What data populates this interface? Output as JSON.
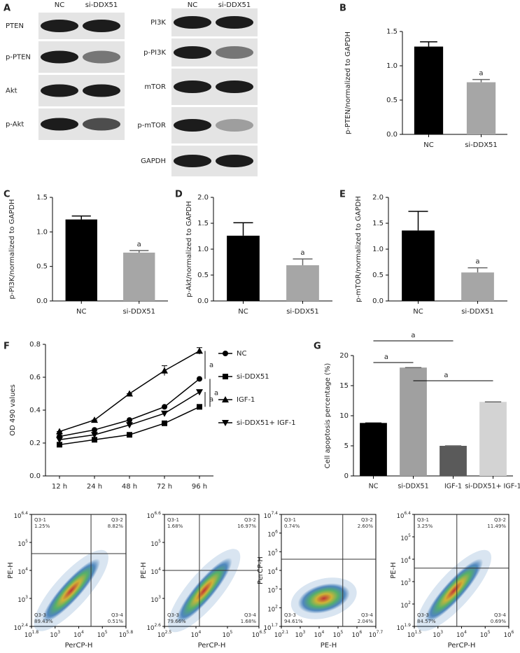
{
  "blots": {
    "panel": "A",
    "left": {
      "columns": [
        "NC",
        "si-DDX51"
      ],
      "rows": [
        "PTEN",
        "p-PTEN",
        "Akt",
        "p-Akt"
      ]
    },
    "right": {
      "columns": [
        "NC",
        "si-DDX51"
      ],
      "rows": [
        "PI3K",
        "p-PI3K",
        "mTOR",
        "p-mTOR",
        "GAPDH"
      ]
    }
  },
  "chart_data": [
    {
      "type": "bar",
      "panel": "B",
      "y_label": "p-PTEN/normalized to GAPDH",
      "categories": [
        "NC",
        "si-DDX51"
      ],
      "values": [
        1.28,
        0.76
      ],
      "errors": [
        0.07,
        0.04
      ],
      "colors": [
        "#000000",
        "#a6a6a6"
      ],
      "value_annotations": [
        null,
        "a"
      ],
      "ylim": [
        0,
        1.5
      ],
      "yticks": [
        {
          "value": 0,
          "label": "0.0"
        },
        0.5,
        {
          "value": 1,
          "label": "1.0"
        },
        1.5
      ]
    },
    {
      "type": "bar",
      "panel": "C",
      "y_label": "p-PI3K/normalized to GAPDH",
      "categories": [
        "NC",
        "si-DDX51"
      ],
      "values": [
        1.18,
        0.7
      ],
      "errors": [
        0.05,
        0.03
      ],
      "colors": [
        "#000000",
        "#a6a6a6"
      ],
      "value_annotations": [
        null,
        "a"
      ],
      "ylim": [
        0,
        1.5
      ],
      "yticks": [
        {
          "value": 0,
          "label": "0.0"
        },
        0.5,
        {
          "value": 1,
          "label": "1.0"
        },
        1.5
      ]
    },
    {
      "type": "bar",
      "panel": "D",
      "y_label": "p-Akt/normalized to GAPDH",
      "categories": [
        "NC",
        "si-DDX51"
      ],
      "values": [
        1.26,
        0.69
      ],
      "errors": [
        0.25,
        0.12
      ],
      "colors": [
        "#000000",
        "#a6a6a6"
      ],
      "value_annotations": [
        null,
        "a"
      ],
      "ylim": [
        0,
        2
      ],
      "yticks": [
        {
          "value": 0,
          "label": "0.0"
        },
        0.5,
        {
          "value": 1,
          "label": "1.0"
        },
        1.5,
        {
          "value": 2,
          "label": "2.0"
        }
      ]
    },
    {
      "type": "bar",
      "panel": "E",
      "y_label": "p-mTOR/normalized to GAPDH",
      "categories": [
        "NC",
        "si-DDX51"
      ],
      "values": [
        1.36,
        0.55
      ],
      "errors": [
        0.37,
        0.09
      ],
      "colors": [
        "#000000",
        "#a6a6a6"
      ],
      "value_annotations": [
        null,
        "a"
      ],
      "ylim": [
        0,
        2
      ],
      "yticks": [
        {
          "value": 0,
          "label": "0.0"
        },
        0.5,
        {
          "value": 1,
          "label": "1.0"
        },
        1.5,
        {
          "value": 2,
          "label": "2.0"
        }
      ]
    },
    {
      "type": "line",
      "panel": "F",
      "y_label": "OD 490 values",
      "categories": [
        "12 h",
        "24 h",
        "48 h",
        "72 h",
        "96 h"
      ],
      "series": [
        {
          "name": "NC",
          "color": "#000000",
          "marker": "circle",
          "values": [
            0.24,
            0.28,
            0.34,
            0.42,
            0.59
          ]
        },
        {
          "name": "si-DDX51",
          "color": "#000000",
          "marker": "square",
          "values": [
            0.19,
            0.22,
            0.25,
            0.32,
            0.42
          ]
        },
        {
          "name": "IGF-1",
          "color": "#000000",
          "marker": "triangle",
          "values": [
            0.27,
            0.34,
            0.5,
            0.64,
            0.76
          ],
          "errors": [
            0,
            0,
            0,
            0.03,
            0.02
          ]
        },
        {
          "name": "si-DDX51+ IGF-1",
          "color": "#000000",
          "marker": "triangle-down",
          "values": [
            0.22,
            0.25,
            0.31,
            0.38,
            0.51
          ]
        }
      ],
      "brackets": [
        {
          "from": "IGF-1",
          "to": "NC",
          "text": "a"
        },
        {
          "from": "NC",
          "to": "si-DDX51",
          "text": "a"
        },
        {
          "from": "si-DDX51+ IGF-1",
          "to": "si-DDX51",
          "text": "a"
        }
      ],
      "ylim": [
        0,
        0.8
      ],
      "yticks": [
        {
          "value": 0,
          "label": "0.0"
        },
        0.2,
        0.4,
        0.6,
        0.8
      ]
    },
    {
      "type": "bar",
      "panel": "G",
      "y_label": "Cell apoptosis percentage (%)",
      "categories": [
        "NC",
        "si-DDX51",
        "IGF-1",
        "si-DDX51+ IGF-1"
      ],
      "values": [
        8.8,
        18,
        5,
        12.3
      ],
      "errors": [
        0,
        0,
        0,
        0
      ],
      "colors": [
        "#000000",
        "#a0a0a0",
        "#5a5a5a",
        "#d3d3d3"
      ],
      "brackets": [
        {
          "from": "NC",
          "to": "IGF-1",
          "text": "a"
        },
        {
          "from": "NC",
          "to": "si-DDX51",
          "text": "a"
        },
        {
          "from": "si-DDX51",
          "to": "si-DDX51+ IGF-1",
          "text": "a"
        }
      ],
      "ylim": [
        0,
        20
      ],
      "yticks": [
        0,
        5,
        10,
        15,
        20
      ]
    }
  ],
  "flow": [
    {
      "x_label": "PerCP-H",
      "y_label": "PE-H",
      "xticks": [
        {
          "base": "10",
          "exp": "1.8"
        },
        {
          "base": "10",
          "exp": "3"
        },
        {
          "base": "10",
          "exp": "4"
        },
        {
          "base": "10",
          "exp": "5"
        },
        {
          "base": "10",
          "exp": "5.8"
        }
      ],
      "yticks": [
        {
          "base": "10",
          "exp": "6.4"
        },
        {
          "base": "10",
          "exp": "5"
        },
        {
          "base": "10",
          "exp": "4"
        },
        {
          "base": "10",
          "exp": "3"
        },
        {
          "base": "10",
          "exp": "2.4"
        }
      ],
      "quadrants": [
        {
          "name": "Q3-1",
          "value": "1.25%"
        },
        {
          "name": "Q3-2",
          "value": "8.82%"
        },
        {
          "name": "Q3-3",
          "value": "89.43%"
        },
        {
          "name": "Q3-4",
          "value": "0.51%"
        }
      ]
    },
    {
      "x_label": "PerCP-H",
      "y_label": "PE-H",
      "xticks": [
        {
          "base": "10",
          "exp": "2.5"
        },
        {
          "base": "10",
          "exp": "4"
        },
        {
          "base": "10",
          "exp": "5"
        },
        {
          "base": "10",
          "exp": "6.5"
        }
      ],
      "yticks": [
        {
          "base": "10",
          "exp": "6.6"
        },
        {
          "base": "10",
          "exp": "5"
        },
        {
          "base": "10",
          "exp": "4"
        },
        {
          "base": "10",
          "exp": "3"
        },
        {
          "base": "10",
          "exp": "2.6"
        }
      ],
      "quadrants": [
        {
          "name": "Q3-1",
          "value": "1.68%"
        },
        {
          "name": "Q3-2",
          "value": "16.97%"
        },
        {
          "name": "Q3-3",
          "value": "79.66%"
        },
        {
          "name": "Q3-4",
          "value": "1.68%"
        }
      ]
    },
    {
      "x_label": "PE-H",
      "y_label": "PerCP-H",
      "xticks": [
        {
          "base": "10",
          "exp": "2.1"
        },
        {
          "base": "10",
          "exp": "3"
        },
        {
          "base": "10",
          "exp": "4"
        },
        {
          "base": "10",
          "exp": "5"
        },
        {
          "base": "10",
          "exp": "6"
        },
        {
          "base": "10",
          "exp": "7.7"
        }
      ],
      "yticks": [
        {
          "base": "10",
          "exp": "7.4"
        },
        {
          "base": "10",
          "exp": "6"
        },
        {
          "base": "10",
          "exp": "5"
        },
        {
          "base": "10",
          "exp": "4"
        },
        {
          "base": "10",
          "exp": "3"
        },
        {
          "base": "10",
          "exp": "2"
        },
        {
          "base": "10",
          "exp": "1.7"
        }
      ],
      "quadrants": [
        {
          "name": "Q3-1",
          "value": "0.74%"
        },
        {
          "name": "Q3-2",
          "value": "2.60%"
        },
        {
          "name": "Q3-3",
          "value": "94.61%"
        },
        {
          "name": "Q3-4",
          "value": "2.04%"
        }
      ]
    },
    {
      "x_label": "PerCP-H",
      "y_label": "PE-H",
      "xticks": [
        {
          "base": "10",
          "exp": "1.5"
        },
        {
          "base": "10",
          "exp": "3"
        },
        {
          "base": "10",
          "exp": "4"
        },
        {
          "base": "10",
          "exp": "5"
        },
        {
          "base": "10",
          "exp": "6"
        }
      ],
      "yticks": [
        {
          "base": "10",
          "exp": "6.4"
        },
        {
          "base": "10",
          "exp": "5"
        },
        {
          "base": "10",
          "exp": "4"
        },
        {
          "base": "10",
          "exp": "3"
        },
        {
          "base": "10",
          "exp": "2"
        },
        {
          "base": "10",
          "exp": "1.9"
        }
      ],
      "quadrants": [
        {
          "name": "Q3-1",
          "value": "3.25%"
        },
        {
          "name": "Q3-2",
          "value": "11.49%"
        },
        {
          "name": "Q3-3",
          "value": "84.57%"
        },
        {
          "name": "Q3-4",
          "value": "0.69%"
        }
      ]
    }
  ]
}
